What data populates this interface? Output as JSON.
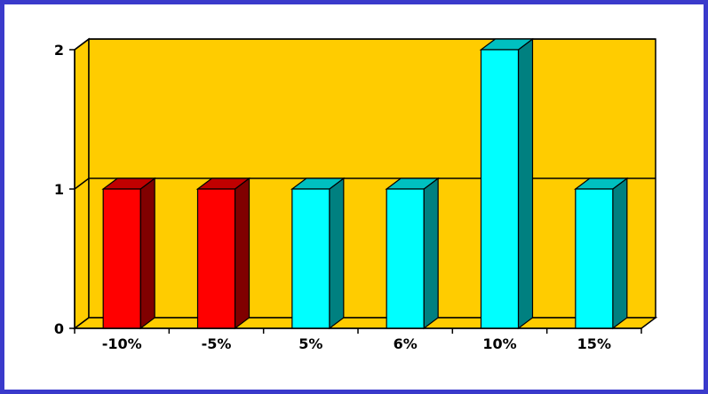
{
  "chart_data": {
    "type": "bar",
    "style": "3d",
    "categories": [
      "-10%",
      "-5%",
      "5%",
      "6%",
      "10%",
      "15%"
    ],
    "values": [
      1,
      1,
      1,
      1,
      2,
      1
    ],
    "yticks": [
      "0",
      "1",
      "2"
    ],
    "ylim": [
      0,
      2
    ],
    "grid": true,
    "title": "",
    "xlabel": "",
    "ylabel": "",
    "colors": {
      "background": "#FFCC00",
      "negative": "#FF0000",
      "negative_side": "#800000",
      "negative_top": "#C00000",
      "positive": "#00FFFF",
      "positive_side": "#008080",
      "positive_top": "#00C0C0",
      "frame": "#3A3ACB"
    }
  }
}
